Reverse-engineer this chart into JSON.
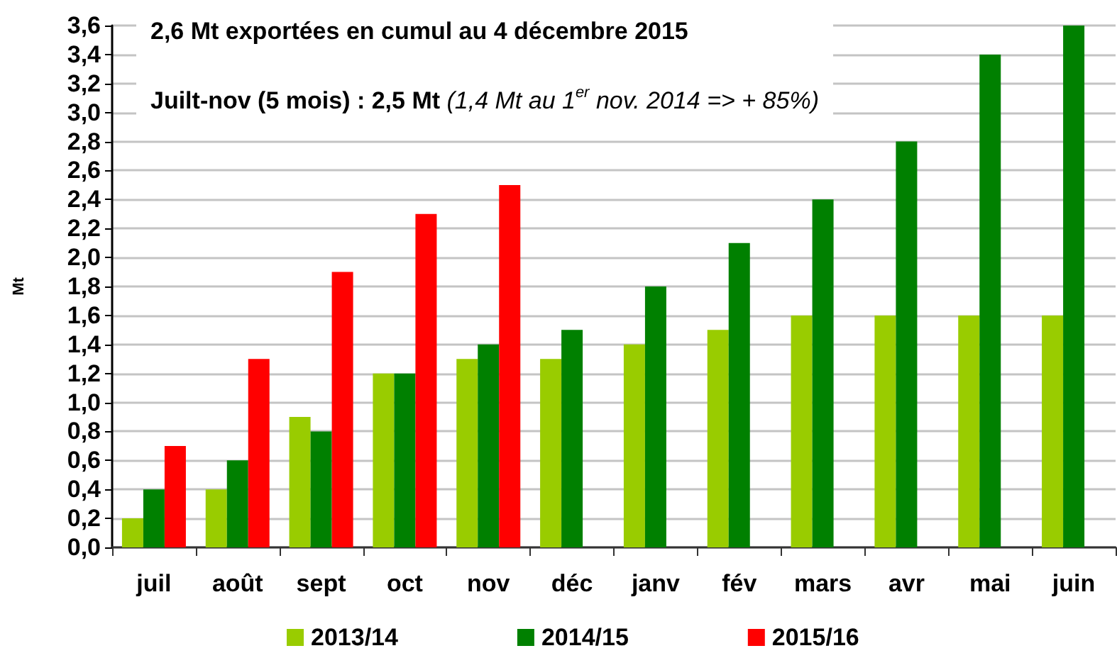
{
  "chart_data": {
    "type": "bar",
    "title": "2,6 Mt exportées en cumul au 4 décembre 2015",
    "subtitle": "Juilt-nov (5 mois) : 2,5 Mt",
    "annotations": [
      "(1,4 Mt au 1$^{er}$ nov. 2014 => + 85%)"
    ],
    "ylabel": "Mt",
    "categories": [
      "juil",
      "août",
      "sept",
      "oct",
      "nov",
      "déc",
      "janv",
      "fév",
      "mars",
      "avr",
      "mai",
      "juin"
    ],
    "series": [
      {
        "name": "2013/14",
        "color": "#99cc00",
        "values": [
          0.2,
          0.4,
          0.9,
          1.2,
          1.3,
          1.3,
          1.4,
          1.5,
          1.6,
          1.6,
          1.6,
          1.6
        ]
      },
      {
        "name": "2014/15",
        "color": "#008000",
        "values": [
          0.4,
          0.6,
          0.8,
          1.2,
          1.4,
          1.5,
          1.8,
          2.1,
          2.4,
          2.8,
          3.4,
          3.6
        ]
      },
      {
        "name": "2015/16",
        "color": "#ff0000",
        "values": [
          0.7,
          1.3,
          1.9,
          2.3,
          2.5,
          null,
          null,
          null,
          null,
          null,
          null,
          null
        ]
      }
    ],
    "ylim": [
      0,
      3.6
    ],
    "yticks": [
      {
        "value": 0,
        "label": "0,0"
      },
      {
        "value": 0.2,
        "label": "0,2"
      },
      {
        "value": 0.4,
        "label": "0,4"
      },
      {
        "value": 0.6,
        "label": "0,6"
      },
      {
        "value": 0.8,
        "label": "0,8"
      },
      {
        "value": 1,
        "label": "1,0"
      },
      {
        "value": 1.2,
        "label": "1,2"
      },
      {
        "value": 1.4,
        "label": "1,4"
      },
      {
        "value": 1.6,
        "label": "1,6"
      },
      {
        "value": 1.8,
        "label": "1,8"
      },
      {
        "value": 2,
        "label": "2,0"
      },
      {
        "value": 2.2,
        "label": "2,2"
      },
      {
        "value": 2.4,
        "label": "2,4"
      },
      {
        "value": 2.6,
        "label": "2,6"
      },
      {
        "value": 2.8,
        "label": "2,8"
      },
      {
        "value": 3,
        "label": "3,0"
      },
      {
        "value": 3.2,
        "label": "3,2"
      },
      {
        "value": 3.4,
        "label": "3,4"
      },
      {
        "value": 3.6,
        "label": "3,6"
      }
    ],
    "grid": "y",
    "legend": "bottom"
  }
}
